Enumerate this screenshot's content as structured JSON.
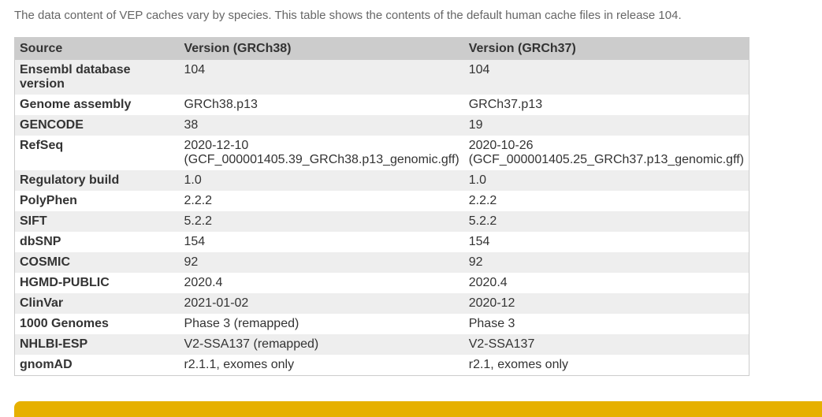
{
  "intro": "The data content of VEP caches vary by species. This table shows the contents of the default human cache files in release 104.",
  "headers": [
    "Source",
    "Version (GRCh38)",
    "Version (GRCh37)"
  ],
  "rows": [
    [
      "Ensembl database version",
      "104",
      "104"
    ],
    [
      "Genome assembly",
      "GRCh38.p13",
      "GRCh37.p13"
    ],
    [
      "GENCODE",
      "38",
      "19"
    ],
    [
      "RefSeq",
      "2020-12-10\n(GCF_000001405.39_GRCh38.p13_genomic.gff)",
      "2020-10-26\n(GCF_000001405.25_GRCh37.p13_genomic.gff)"
    ],
    [
      "Regulatory build",
      "1.0",
      "1.0"
    ],
    [
      "PolyPhen",
      "2.2.2",
      "2.2.2"
    ],
    [
      "SIFT",
      "5.2.2",
      "5.2.2"
    ],
    [
      "dbSNP",
      "154",
      "154"
    ],
    [
      "COSMIC",
      "92",
      "92"
    ],
    [
      "HGMD-PUBLIC",
      "2020.4",
      "2020.4"
    ],
    [
      "ClinVar",
      "2021-01-02",
      "2020-12"
    ],
    [
      "1000 Genomes",
      "Phase 3 (remapped)",
      "Phase 3"
    ],
    [
      "NHLBI-ESP",
      "V2-SSA137 (remapped)",
      "V2-SSA137"
    ],
    [
      "gnomAD",
      "r2.1.1, exomes only",
      "r2.1, exomes only"
    ]
  ],
  "colors": {
    "header_bg": "#cccccc",
    "stripe": "#eeeeee",
    "section_bar": "#e6b000"
  }
}
